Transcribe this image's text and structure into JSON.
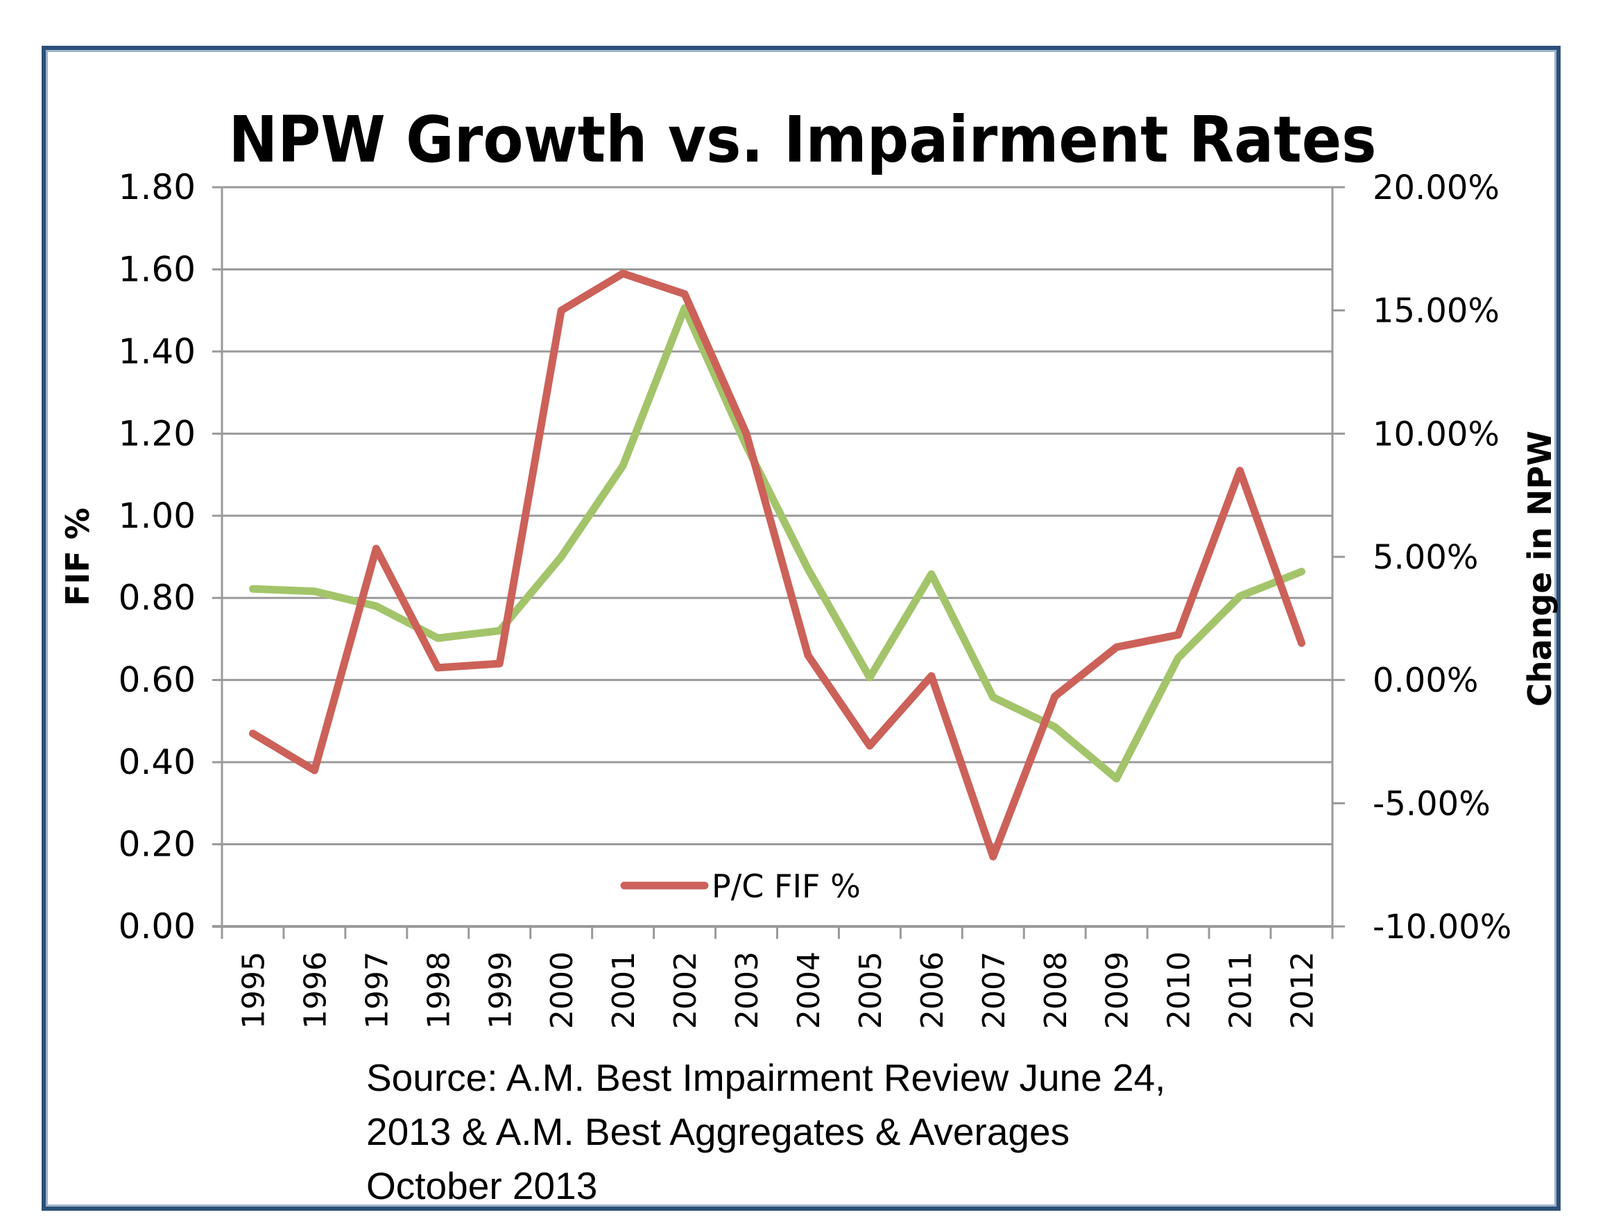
{
  "chart_data": {
    "type": "line",
    "title": "NPW Growth vs. Impairment Rates",
    "xlabel": "",
    "ylabel": "FIF %",
    "y2label": "Change in NPW",
    "categories": [
      "1995",
      "1996",
      "1997",
      "1998",
      "1999",
      "2000",
      "2001",
      "2002",
      "2003",
      "2004",
      "2005",
      "2006",
      "2007",
      "2008",
      "2009",
      "2010",
      "2011",
      "2012"
    ],
    "ylim": [
      0,
      1.8
    ],
    "y2lim": [
      -10,
      20
    ],
    "yticks": [
      "0.00",
      "0.20",
      "0.40",
      "0.60",
      "0.80",
      "1.00",
      "1.20",
      "1.40",
      "1.60",
      "1.80"
    ],
    "y2ticks": [
      "-10.00%",
      "-5.00%",
      "0.00%",
      "5.00%",
      "10.00%",
      "15.00%",
      "20.00%"
    ],
    "grid": true,
    "legend_position": "bottom-center",
    "series": [
      {
        "name": "P/C FIF %",
        "axis": "left",
        "color": "#cc6159",
        "values": [
          0.47,
          0.38,
          0.92,
          0.63,
          0.64,
          1.5,
          1.59,
          1.54,
          1.2,
          0.66,
          0.44,
          0.61,
          0.17,
          0.56,
          0.68,
          0.71,
          1.11,
          0.69
        ]
      },
      {
        "name": "Change in NPW",
        "axis": "right",
        "color": "#a3c46a",
        "values": [
          3.7,
          3.6,
          3.0,
          1.7,
          2.0,
          5.0,
          8.7,
          15.1,
          9.5,
          4.5,
          0.1,
          4.3,
          -0.7,
          -1.9,
          -4.0,
          0.9,
          3.4,
          4.4
        ]
      }
    ],
    "legend": [
      "P/C FIF %"
    ],
    "source_lines": [
      "Source: A.M. Best Impairment Review June 24,",
      "2013 & A.M. Best Aggregates & Averages",
      "October 2013"
    ]
  }
}
